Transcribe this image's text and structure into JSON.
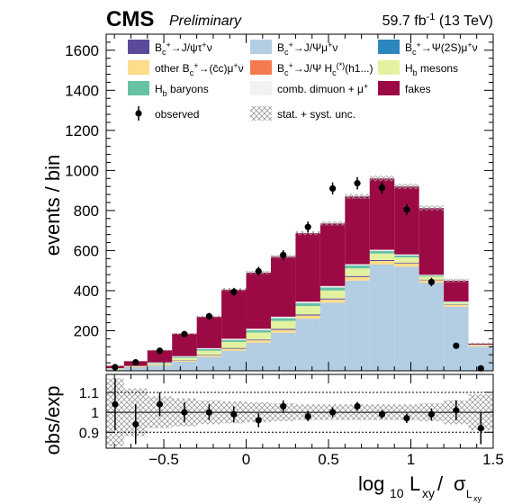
{
  "header": {
    "experiment": "CMS",
    "preliminary": "Preliminary",
    "lumi_main": "59.7 fb",
    "lumi_exp": "-1",
    "lumi_tail": " (13 TeV)"
  },
  "legend": {
    "entries": [
      {
        "key": "tau",
        "label": "Bc+→J/ψτ+ν",
        "color": "#5b4a9b",
        "kind": "box"
      },
      {
        "key": "mu",
        "label": "Bc+→J/ψμ+ν",
        "color": "#b3cde3",
        "kind": "box"
      },
      {
        "key": "psi2s",
        "label": "Bc+→ψ(2S)μ+ν",
        "color": "#2e86c1",
        "kind": "box"
      },
      {
        "key": "ccbar",
        "label": "other Bc+→(c̄c)μ+ν",
        "color": "#fddc8a",
        "kind": "box"
      },
      {
        "key": "hc",
        "label": "Bc+→J/ψ Hc(*)(h1...)",
        "color": "#f47a4f",
        "kind": "box"
      },
      {
        "key": "hb",
        "label": "Hb mesons",
        "color": "#e3f2a0",
        "kind": "box"
      },
      {
        "key": "baryons",
        "label": "Hb baryons",
        "color": "#66c2a5",
        "kind": "box"
      },
      {
        "key": "comb",
        "label": "comb. dimuon + μ+",
        "color": "#f2f2f2",
        "kind": "box"
      },
      {
        "key": "fakes",
        "label": "fakes",
        "color": "#9b0a44",
        "kind": "box"
      },
      {
        "key": "observed",
        "label": "observed",
        "color": "#000000",
        "kind": "marker"
      },
      {
        "key": "unc",
        "label": "stat. + syst. unc.",
        "color": "#9a9a9a",
        "kind": "hatch"
      }
    ]
  },
  "chart_data": {
    "type": "bar",
    "subtype": "stacked-histogram-with-ratio",
    "xlabel": "log10 Lxy/ σLxy",
    "ylabel": "events / bin",
    "ratio_ylabel": "obs/exp",
    "xlim": [
      -0.85,
      1.5
    ],
    "ylim": [
      0,
      1680
    ],
    "ratio_ylim": [
      0.82,
      1.19
    ],
    "xticks": [
      -0.5,
      0,
      0.5,
      1,
      1.5
    ],
    "xtick_labels": [
      "−0.5",
      "0",
      "0.5",
      "1",
      "1.5"
    ],
    "yticks": [
      200,
      400,
      600,
      800,
      1000,
      1200,
      1400,
      1600
    ],
    "ratio_yticks": [
      0.9,
      1,
      1.1
    ],
    "ratio_ytick_labels": [
      "0.9",
      "1",
      "1.1"
    ],
    "bin_edges": [
      -0.85,
      -0.742,
      -0.6,
      -0.45,
      -0.3,
      -0.15,
      0,
      0.15,
      0.3,
      0.45,
      0.6,
      0.75,
      0.9,
      1.05,
      1.2,
      1.35,
      1.5
    ],
    "series": [
      {
        "name": "Bc+→J/ψμ+ν",
        "key": "mu",
        "values": [
          8,
          15,
          25,
          45,
          70,
          100,
          140,
          190,
          260,
          340,
          450,
          530,
          520,
          440,
          320,
          120
        ]
      },
      {
        "name": "other Bc+→(c̄c)μ+ν",
        "key": "ccbar",
        "values": [
          1,
          2,
          3,
          5,
          7,
          10,
          12,
          14,
          16,
          16,
          18,
          18,
          16,
          12,
          8,
          3
        ]
      },
      {
        "name": "Bc+→J/ψτ+ν",
        "key": "tau",
        "values": [
          0,
          1,
          1,
          2,
          3,
          4,
          4,
          5,
          5,
          5,
          5,
          5,
          4,
          3,
          2,
          1
        ]
      },
      {
        "name": "Hb mesons",
        "key": "hb",
        "values": [
          2,
          3,
          7,
          12,
          20,
          30,
          35,
          40,
          42,
          40,
          38,
          32,
          26,
          15,
          10,
          4
        ]
      },
      {
        "name": "Hb baryons",
        "key": "baryons",
        "values": [
          1,
          1,
          3,
          5,
          8,
          10,
          12,
          14,
          15,
          15,
          15,
          13,
          10,
          5,
          3,
          1
        ]
      },
      {
        "name": "comb. dimuon + μ+",
        "key": "comb",
        "values": [
          1,
          2,
          3,
          4,
          5,
          6,
          7,
          7,
          7,
          7,
          6,
          6,
          5,
          4,
          3,
          1
        ]
      },
      {
        "name": "fakes",
        "key": "fakes",
        "values": [
          12,
          24,
          60,
          112,
          157,
          245,
          280,
          300,
          342,
          312,
          338,
          356,
          339,
          333,
          104,
          6
        ]
      }
    ],
    "observed": [
      18,
      42,
      100,
      183,
      272,
      394,
      497,
      578,
      718,
      910,
      936,
      914,
      805,
      443,
      125,
      12
    ],
    "observed_err": [
      4,
      7,
      10,
      14,
      17,
      20,
      22,
      24,
      27,
      30,
      31,
      30,
      28,
      21,
      11,
      4
    ],
    "ratio": [
      1.04,
      0.94,
      1.04,
      1.0,
      1.0,
      0.99,
      0.96,
      1.03,
      0.98,
      1.0,
      1.03,
      0.99,
      0.97,
      0.99,
      1.01,
      0.92
    ],
    "ratio_err": [
      0.13,
      0.1,
      0.06,
      0.05,
      0.04,
      0.04,
      0.035,
      0.03,
      0.025,
      0.025,
      0.022,
      0.022,
      0.024,
      0.03,
      0.05,
      0.08
    ],
    "unc_band": [
      0.17,
      0.12,
      0.08,
      0.07,
      0.06,
      0.055,
      0.05,
      0.045,
      0.04,
      0.04,
      0.04,
      0.04,
      0.04,
      0.045,
      0.06,
      0.09
    ]
  }
}
